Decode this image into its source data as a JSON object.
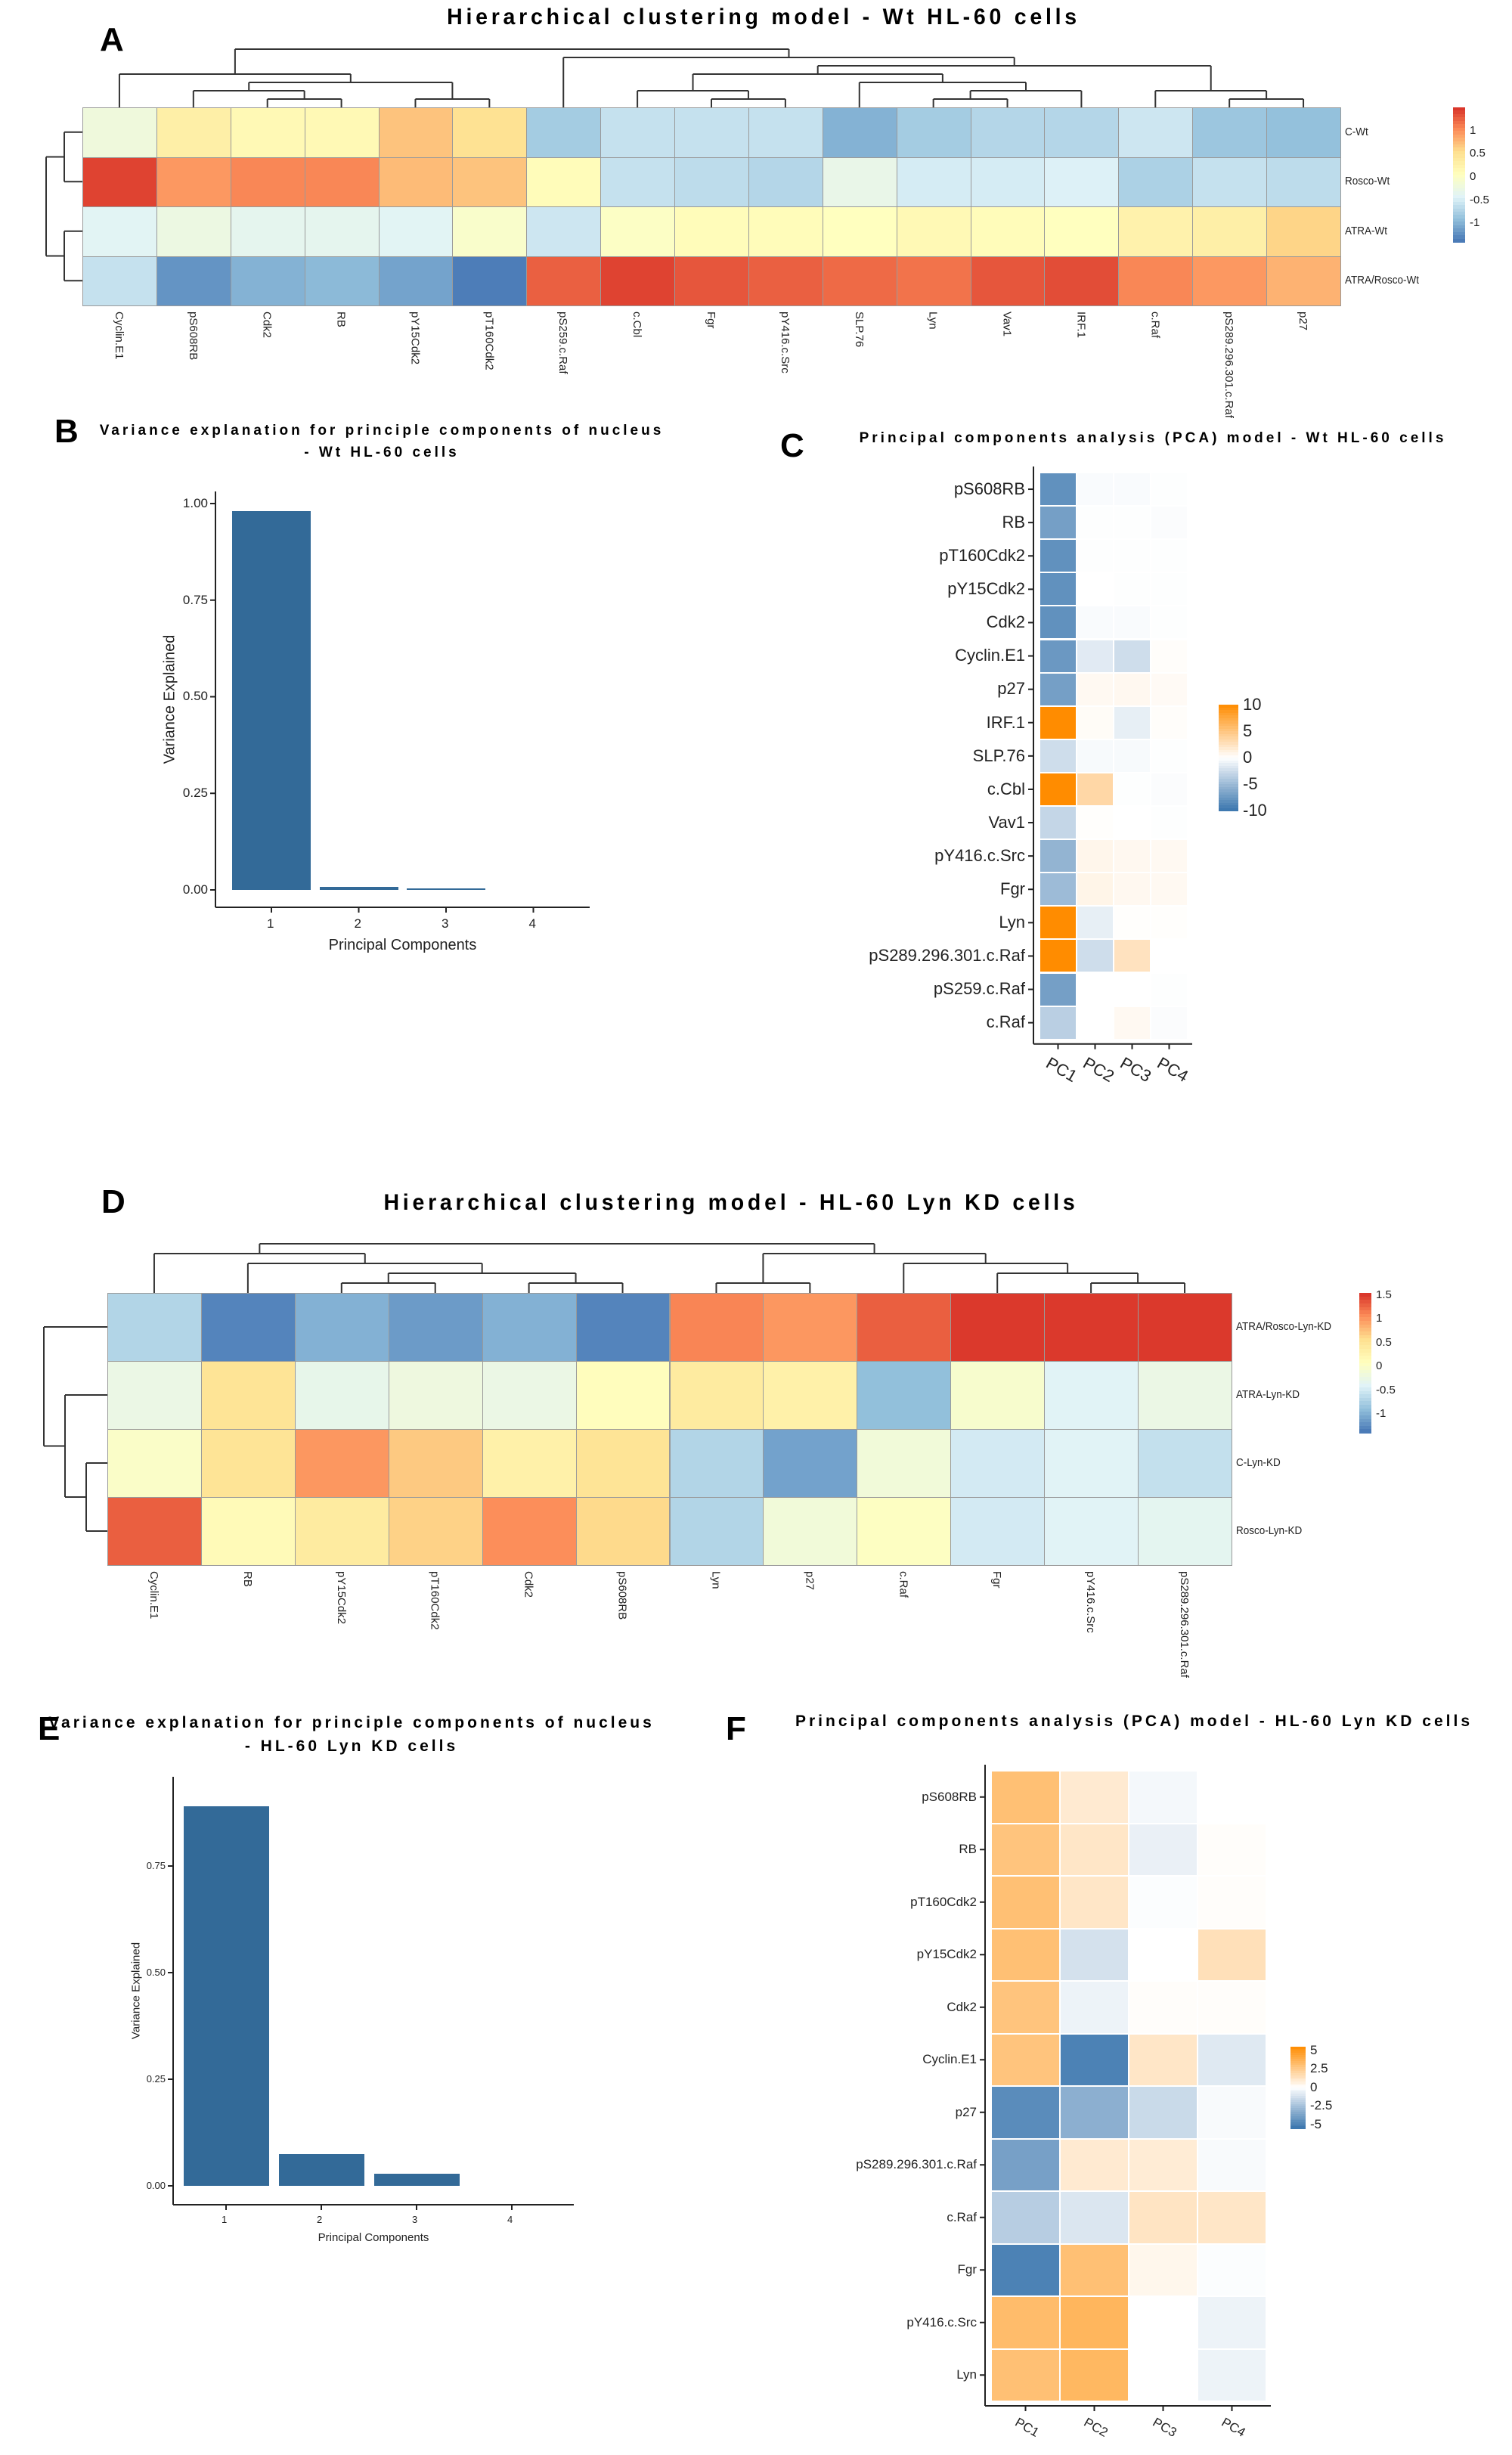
{
  "panels": {
    "A": "A",
    "B": "B",
    "C": "C",
    "D": "D",
    "E": "E",
    "F": "F"
  },
  "chart_data": [
    {
      "panel": "A",
      "type": "heatmap",
      "title": "Hierarchical clustering model - Wt HL-60 cells",
      "rows": [
        "C-Wt",
        "Rosco-Wt",
        "ATRA-Wt",
        "ATRA/Rosco-Wt"
      ],
      "columns": [
        "Cyclin.E1",
        "pS608RB",
        "Cdk2",
        "RB",
        "pY15Cdk2",
        "pT160Cdk2",
        "pS259.c.Raf",
        "c.Cbl",
        "Fgr",
        "pY416.c.Src",
        "SLP.76",
        "Lyn",
        "Vav1",
        "IRF.1",
        "c.Raf",
        "pS289.296.301.c.Raf",
        "p27"
      ],
      "values": [
        [
          -0.2,
          0.3,
          0.15,
          0.15,
          0.7,
          0.5,
          -0.8,
          -0.6,
          -0.6,
          -0.6,
          -1.0,
          -0.8,
          -0.7,
          -0.7,
          -0.55,
          -0.85,
          -0.9
        ],
        [
          1.4,
          0.95,
          1.05,
          1.05,
          0.75,
          0.7,
          0.1,
          -0.6,
          -0.65,
          -0.7,
          -0.3,
          -0.5,
          -0.5,
          -0.45,
          -0.75,
          -0.6,
          -0.65
        ],
        [
          -0.4,
          -0.25,
          -0.35,
          -0.35,
          -0.4,
          -0.05,
          -0.55,
          0.0,
          0.1,
          0.1,
          0.05,
          0.15,
          0.1,
          0.05,
          0.25,
          0.3,
          0.6
        ],
        [
          -0.6,
          -1.2,
          -1.0,
          -0.95,
          -1.1,
          -1.35,
          1.25,
          1.4,
          1.3,
          1.25,
          1.2,
          1.15,
          1.3,
          1.35,
          1.05,
          0.95,
          0.8
        ]
      ],
      "color_range": [
        -1.4,
        1.5
      ],
      "legend_ticks": [
        "1",
        "0.5",
        "0",
        "-0.5",
        "-1"
      ],
      "colors": [
        "#4575b4",
        "#91bfdb",
        "#e0f3f8",
        "#ffffbf",
        "#fee090",
        "#fc8d59",
        "#d73027"
      ]
    },
    {
      "panel": "B",
      "type": "bar",
      "title_lines": [
        "Variance explanation for principle components of nucleus",
        "- Wt HL-60 cells"
      ],
      "categories": [
        "1",
        "2",
        "3",
        "4"
      ],
      "values": [
        0.98,
        0.008,
        0.002,
        0
      ],
      "yticks": [
        "0.00",
        "0.25",
        "0.50",
        "0.75",
        "1.00"
      ],
      "ylim": [
        0,
        1
      ],
      "xlabel": "Principal Components",
      "ylabel": "Variance Explained",
      "bar_color": "#336a98"
    },
    {
      "panel": "C",
      "type": "heatmap",
      "title": "Principal components analysis (PCA) model - Wt HL-60 cells",
      "rows": [
        "pS608RB",
        "RB",
        "pT160Cdk2",
        "pY15Cdk2",
        "Cdk2",
        "Cyclin.E1",
        "p27",
        "IRF.1",
        "SLP.76",
        "c.Cbl",
        "Vav1",
        "pY416.c.Src",
        "Fgr",
        "Lyn",
        "pS289.296.301.c.Raf",
        "pS259.c.Raf",
        "c.Raf"
      ],
      "columns": [
        "PC1",
        "PC2",
        "PC3",
        "PC4"
      ],
      "values": [
        [
          -8,
          -0.3,
          -0.3,
          -0.1
        ],
        [
          -7,
          -0.1,
          -0.1,
          -0.2
        ],
        [
          -8,
          -0.1,
          -0.1,
          -0.1
        ],
        [
          -8,
          0,
          -0.1,
          -0.1
        ],
        [
          -8,
          -0.3,
          -0.3,
          -0.1
        ],
        [
          -7.5,
          -1.5,
          -2.5,
          0.2
        ],
        [
          -7,
          0.5,
          0.6,
          0.4
        ],
        [
          10,
          0.3,
          -1.2,
          0.2
        ],
        [
          -2.5,
          -0.4,
          -0.4,
          -0.1
        ],
        [
          10,
          3.5,
          -0.1,
          -0.2
        ],
        [
          -3,
          0.1,
          0,
          -0.1
        ],
        [
          -5.5,
          0.8,
          0.6,
          0.5
        ],
        [
          -5,
          0.9,
          0.6,
          0.5
        ],
        [
          10,
          -1.2,
          0.1,
          0.1
        ],
        [
          10,
          -2.5,
          2.5,
          0
        ],
        [
          -7,
          0,
          0,
          -0.1
        ],
        [
          -3.5,
          0,
          0.5,
          -0.2
        ]
      ],
      "color_range": [
        -10,
        10
      ],
      "legend_ticks": [
        "10",
        "5",
        "0",
        "-5",
        "-10"
      ],
      "colors": [
        "#3a76ae",
        "#ffffff",
        "#ff8c00"
      ]
    },
    {
      "panel": "D",
      "type": "heatmap",
      "title": "Hierarchical clustering model - HL-60 Lyn KD cells",
      "rows": [
        "ATRA/Rosco-Lyn-KD",
        "ATRA-Lyn-KD",
        "C-Lyn-KD",
        "Rosco-Lyn-KD"
      ],
      "columns": [
        "Cyclin.E1",
        "RB",
        "pY15Cdk2",
        "pT160Cdk2",
        "Cdk2",
        "pS608RB",
        "Lyn",
        "p27",
        "c.Raf",
        "Fgr",
        "pY416.c.Src",
        "pS289.296.301.c.Raf"
      ],
      "values": [
        [
          -0.7,
          -1.3,
          -1.0,
          -1.15,
          -1.0,
          -1.3,
          1.1,
          1.0,
          1.3,
          1.5,
          1.5,
          1.5
        ],
        [
          -0.25,
          0.5,
          -0.3,
          -0.2,
          -0.25,
          0.1,
          0.4,
          0.3,
          -0.9,
          -0.05,
          -0.4,
          -0.25
        ],
        [
          0.0,
          0.5,
          1.0,
          0.7,
          0.3,
          0.5,
          -0.7,
          -1.1,
          -0.15,
          -0.5,
          -0.4,
          -0.6
        ],
        [
          1.3,
          0.15,
          0.4,
          0.65,
          1.05,
          0.6,
          -0.7,
          -0.15,
          0.05,
          -0.5,
          -0.4,
          -0.35
        ]
      ],
      "color_range": [
        -1.4,
        1.55
      ],
      "legend_ticks": [
        "1.5",
        "1",
        "0.5",
        "0",
        "-0.5",
        "-1"
      ],
      "colors": [
        "#4575b4",
        "#91bfdb",
        "#e0f3f8",
        "#ffffbf",
        "#fee090",
        "#fc8d59",
        "#d73027"
      ]
    },
    {
      "panel": "E",
      "type": "bar",
      "title_lines": [
        "Variance explanation for principle components of nucleus",
        "- HL-60 Lyn KD cells"
      ],
      "categories": [
        "1",
        "2",
        "3",
        "4"
      ],
      "values": [
        0.89,
        0.075,
        0.028,
        0
      ],
      "yticks": [
        "0.00",
        "0.25",
        "0.50",
        "0.75"
      ],
      "ylim": [
        0,
        0.9
      ],
      "xlabel": "Principal Components",
      "ylabel": "Variance Explained",
      "bar_color": "#336a98"
    },
    {
      "panel": "F",
      "type": "heatmap",
      "title": "Principal components analysis (PCA) model - HL-60 Lyn KD cells",
      "rows": [
        "pS608RB",
        "RB",
        "pT160Cdk2",
        "pY15Cdk2",
        "Cdk2",
        "Cyclin.E1",
        "p27",
        "pS289.296.301.c.Raf",
        "c.Raf",
        "Fgr",
        "pY416.c.Src",
        "Lyn"
      ],
      "columns": [
        "PC1",
        "PC2",
        "PC3",
        "PC4"
      ],
      "values": [
        [
          3,
          1,
          -0.3,
          0
        ],
        [
          2.8,
          1.2,
          -0.6,
          0.1
        ],
        [
          3,
          1.2,
          -0.1,
          0.1
        ],
        [
          3,
          -1.2,
          0,
          1.5
        ],
        [
          2.8,
          -0.5,
          0.1,
          0.1
        ],
        [
          2.8,
          -5,
          1.2,
          -0.9
        ],
        [
          -4.6,
          -3.2,
          -1.5,
          -0.2
        ],
        [
          -3.8,
          1,
          0.9,
          -0.2
        ],
        [
          -2,
          -1,
          1.3,
          1.2
        ],
        [
          -5,
          3,
          0.4,
          -0.1
        ],
        [
          3.2,
          3.5,
          0,
          -0.5
        ],
        [
          3,
          3.4,
          0,
          -0.5
        ]
      ],
      "color_range": [
        -5.5,
        5.5
      ],
      "legend_ticks": [
        "5",
        "2.5",
        "0",
        "-2.5",
        "-5"
      ],
      "colors": [
        "#3a76ae",
        "#ffffff",
        "#ff8c00"
      ]
    }
  ]
}
